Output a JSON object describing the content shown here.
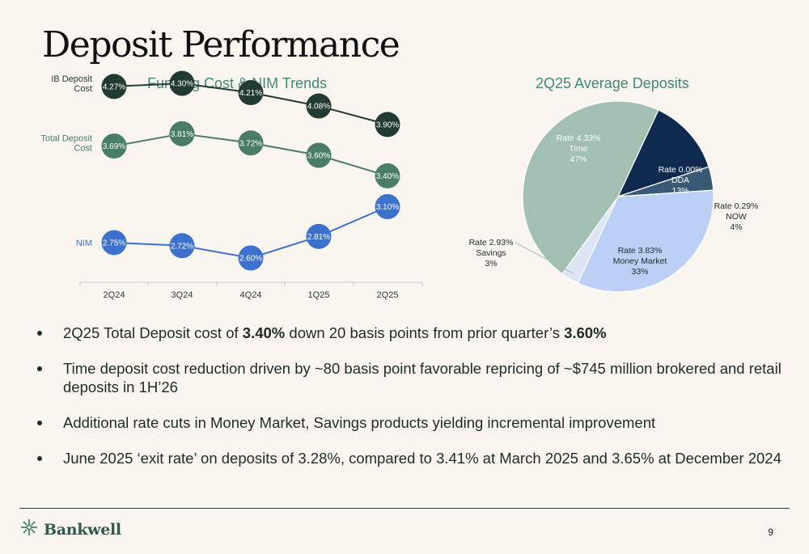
{
  "title": "Deposit Performance",
  "line_chart_title": "Funding Cost & NIM Trends",
  "pie_chart_title": "2Q25 Average Deposits",
  "colors": {
    "ib_deposit": "#213a32",
    "total_deposit": "#4a7d66",
    "nim": "#3d72cc",
    "accent": "#3d8a74"
  },
  "chart_data": [
    {
      "type": "line",
      "title": "Funding Cost & NIM Trends",
      "categories": [
        "2Q24",
        "3Q24",
        "4Q24",
        "1Q25",
        "2Q25"
      ],
      "series": [
        {
          "name": "IB Deposit Cost",
          "values": [
            4.27,
            4.3,
            4.21,
            4.08,
            3.9
          ],
          "labels": [
            "4.27%",
            "4.30%",
            "4.21%",
            "4.08%",
            "3.90%"
          ],
          "color": "#213a32"
        },
        {
          "name": "Total Deposit Cost",
          "values": [
            3.69,
            3.81,
            3.72,
            3.6,
            3.4
          ],
          "labels": [
            "3.69%",
            "3.81%",
            "3.72%",
            "3.60%",
            "3.40%"
          ],
          "color": "#4a7d66"
        },
        {
          "name": "NIM",
          "values": [
            2.75,
            2.72,
            2.6,
            2.81,
            3.1
          ],
          "labels": [
            "2.75%",
            "2.72%",
            "2.60%",
            "2.81%",
            "3.10%"
          ],
          "color": "#3d72cc"
        }
      ],
      "legend_placement": "left"
    },
    {
      "type": "pie",
      "title": "2Q25 Average Deposits",
      "slices": [
        {
          "name": "Time",
          "rate": "Rate 4.33%",
          "value": 47,
          "label": "47%",
          "color": "#a2c0b1"
        },
        {
          "name": "DDA",
          "rate": "Rate 0.00%",
          "value": 13,
          "label": "13%",
          "color": "#0e2a4e"
        },
        {
          "name": "NOW",
          "rate": "Rate 0.29%",
          "value": 4,
          "label": "4%",
          "color": "#395a72"
        },
        {
          "name": "Money Market",
          "rate": "Rate 3.83%",
          "value": 33,
          "label": "33%",
          "color": "#bcd0f5"
        },
        {
          "name": "Savings",
          "rate": "Rate 2.93%",
          "value": 3,
          "label": "3%",
          "color": "#dce5f4"
        }
      ]
    }
  ],
  "bullets": [
    {
      "pre": "2Q25 Total Deposit cost of ",
      "b1": "3.40%",
      "mid": " down 20 basis points from prior quarter’s ",
      "b2": "3.60%",
      "post": ""
    },
    {
      "pre": "Time deposit cost reduction driven by ~80 basis point favorable repricing of ~$745 million brokered and retail deposits in 1H’26",
      "b1": "",
      "mid": "",
      "b2": "",
      "post": ""
    },
    {
      "pre": "Additional rate cuts in Money Market, Savings products yielding incremental improvement",
      "b1": "",
      "mid": "",
      "b2": "",
      "post": ""
    },
    {
      "pre": "June 2025 ‘exit rate’ on deposits of 3.28%, compared to 3.41% at March 2025 and 3.65% at December 2024",
      "b1": "",
      "mid": "",
      "b2": "",
      "post": ""
    }
  ],
  "footer": {
    "logo_text": "Bankwell",
    "logo_icon": "bankwell-mark-icon",
    "page_number": "9"
  }
}
